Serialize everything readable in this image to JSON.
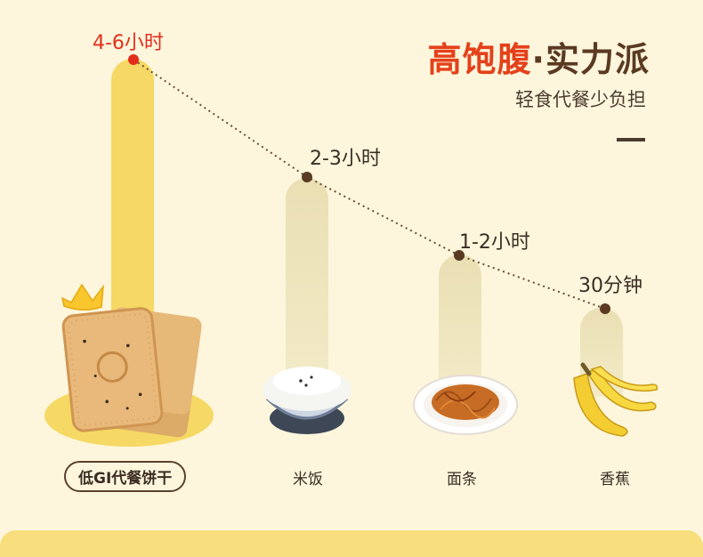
{
  "headline": {
    "part1": "高饱腹",
    "dot": "·",
    "part2": "实力派",
    "subtitle": "轻食代餐少负担"
  },
  "items": [
    {
      "time": "4-6小时",
      "food": "低GI代餐饼干",
      "highlight": true
    },
    {
      "time": "2-3小时",
      "food": "米饭",
      "highlight": false
    },
    {
      "time": "1-2小时",
      "food": "面条",
      "highlight": false
    },
    {
      "time": "30分钟",
      "food": "香蕉",
      "highlight": false
    }
  ],
  "colors": {
    "background": "#fdf6dc",
    "accent_red": "#e4411b",
    "gold": "#f6d964",
    "text_dark": "#3b2d24"
  }
}
